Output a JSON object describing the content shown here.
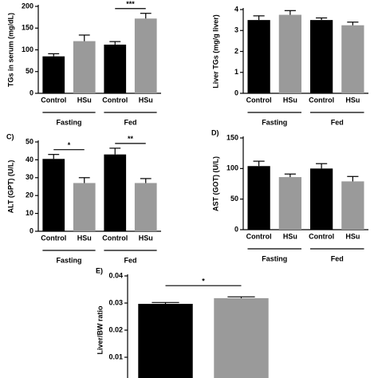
{
  "chart_data": [
    {
      "type": "bar",
      "ylabel": "TGs in serum (mg/dL)",
      "categories": [
        "Control",
        "HSu",
        "Control",
        "HSu"
      ],
      "values": [
        85,
        120,
        112,
        172
      ],
      "errors": [
        6,
        14,
        7,
        12
      ],
      "colors": [
        "#000000",
        "#9a9a9a",
        "#000000",
        "#9a9a9a"
      ],
      "groups": [
        {
          "name": "Fasting"
        },
        {
          "name": "Fed",
          "annotation": "***"
        }
      ],
      "ylim": [
        0,
        200
      ],
      "yticks": [
        0,
        50,
        100,
        150,
        200
      ],
      "grid": false
    },
    {
      "type": "bar",
      "ylabel": "Liver TGs (mg/g liver)",
      "categories": [
        "Control",
        "HSu",
        "Control",
        "HSu"
      ],
      "values": [
        3.5,
        3.75,
        3.5,
        3.25
      ],
      "errors": [
        0.2,
        0.2,
        0.1,
        0.15
      ],
      "colors": [
        "#000000",
        "#9a9a9a",
        "#000000",
        "#9a9a9a"
      ],
      "groups": [
        {
          "name": "Fasting"
        },
        {
          "name": "Fed"
        }
      ],
      "ylim": [
        0,
        4
      ],
      "yticks": [
        0,
        1,
        2,
        3,
        4
      ],
      "grid": false
    },
    {
      "type": "bar",
      "panel_label": "C)",
      "ylabel": "ALT (GPT) (U/L)",
      "categories": [
        "Control",
        "HSu",
        "Control",
        "HSu"
      ],
      "values": [
        40.5,
        27,
        43,
        27
      ],
      "errors": [
        2.5,
        3,
        3.5,
        2.5
      ],
      "colors": [
        "#000000",
        "#9a9a9a",
        "#000000",
        "#9a9a9a"
      ],
      "groups": [
        {
          "name": "Fasting",
          "annotation": "*"
        },
        {
          "name": "Fed",
          "annotation": "**"
        }
      ],
      "ylim": [
        0,
        50
      ],
      "yticks": [
        0,
        10,
        20,
        30,
        40,
        50
      ],
      "grid": false
    },
    {
      "type": "bar",
      "panel_label": "D)",
      "ylabel": "AST (GOT) (U/L)",
      "categories": [
        "Control",
        "HSu",
        "Control",
        "HSu"
      ],
      "values": [
        104,
        86,
        100,
        79
      ],
      "errors": [
        8,
        5,
        8,
        8
      ],
      "colors": [
        "#000000",
        "#9a9a9a",
        "#000000",
        "#9a9a9a"
      ],
      "groups": [
        {
          "name": "Fasting"
        },
        {
          "name": "Fed"
        }
      ],
      "ylim": [
        0,
        150
      ],
      "yticks": [
        0,
        50,
        100,
        150
      ],
      "grid": false
    },
    {
      "type": "bar",
      "panel_label": "E)",
      "ylabel": "Liver/BW ratio",
      "categories": [
        null,
        null
      ],
      "values": [
        0.0297,
        0.0318
      ],
      "errors": [
        0.0005,
        0.0005
      ],
      "colors": [
        "#000000",
        "#9a9a9a"
      ],
      "annotation": "*",
      "ylim": [
        0,
        0.04
      ],
      "yticks": [
        0.01,
        0.02,
        0.03,
        0.04
      ],
      "grid": false
    }
  ]
}
